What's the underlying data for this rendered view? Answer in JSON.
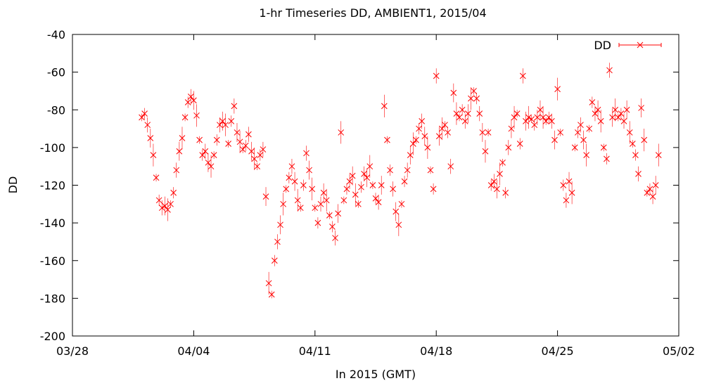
{
  "chart_data": {
    "type": "scatter",
    "title": "1-hr Timeseries DD, AMBIENT1, 2015/04",
    "xlabel": "In 2015 (GMT)",
    "ylabel": "DD",
    "x_ticks": [
      "03/28",
      "04/04",
      "04/11",
      "04/18",
      "04/25",
      "05/02"
    ],
    "xlim": [
      "03/28",
      "05/02"
    ],
    "ylim": [
      -200,
      -40
    ],
    "y_ticks": [
      -200,
      -180,
      -160,
      -140,
      -120,
      -100,
      -80,
      -60,
      -40
    ],
    "grid": false,
    "legend_position": "top-right",
    "marker": "x",
    "error_bars": true,
    "color": "#ff0000",
    "series": [
      {
        "name": "DD",
        "points": [
          {
            "x": "2015-04-01 00:00",
            "y": -84
          },
          {
            "x": "2015-04-01 04:00",
            "y": -82
          },
          {
            "x": "2015-04-01 08:00",
            "y": -88
          },
          {
            "x": "2015-04-01 12:00",
            "y": -95
          },
          {
            "x": "2015-04-01 16:00",
            "y": -104
          },
          {
            "x": "2015-04-01 20:00",
            "y": -116
          },
          {
            "x": "2015-04-02 00:00",
            "y": -128
          },
          {
            "x": "2015-04-02 04:00",
            "y": -132
          },
          {
            "x": "2015-04-02 08:00",
            "y": -131
          },
          {
            "x": "2015-04-02 12:00",
            "y": -133
          },
          {
            "x": "2015-04-02 16:00",
            "y": -130
          },
          {
            "x": "2015-04-02 20:00",
            "y": -124
          },
          {
            "x": "2015-04-03 00:00",
            "y": -112
          },
          {
            "x": "2015-04-03 04:00",
            "y": -102
          },
          {
            "x": "2015-04-03 08:00",
            "y": -95
          },
          {
            "x": "2015-04-03 12:00",
            "y": -84
          },
          {
            "x": "2015-04-03 16:00",
            "y": -76
          },
          {
            "x": "2015-04-03 20:00",
            "y": -73
          },
          {
            "x": "2015-04-04 00:00",
            "y": -75
          },
          {
            "x": "2015-04-04 04:00",
            "y": -83
          },
          {
            "x": "2015-04-04 08:00",
            "y": -96
          },
          {
            "x": "2015-04-04 12:00",
            "y": -104
          },
          {
            "x": "2015-04-04 16:00",
            "y": -102
          },
          {
            "x": "2015-04-04 20:00",
            "y": -108
          },
          {
            "x": "2015-04-05 00:00",
            "y": -110
          },
          {
            "x": "2015-04-05 04:00",
            "y": -104
          },
          {
            "x": "2015-04-05 08:00",
            "y": -96
          },
          {
            "x": "2015-04-05 12:00",
            "y": -88
          },
          {
            "x": "2015-04-05 16:00",
            "y": -86
          },
          {
            "x": "2015-04-05 20:00",
            "y": -88
          },
          {
            "x": "2015-04-06 00:00",
            "y": -98
          },
          {
            "x": "2015-04-06 04:00",
            "y": -86
          },
          {
            "x": "2015-04-06 08:00",
            "y": -78
          },
          {
            "x": "2015-04-06 12:00",
            "y": -92
          },
          {
            "x": "2015-04-06 16:00",
            "y": -97
          },
          {
            "x": "2015-04-06 20:00",
            "y": -101
          },
          {
            "x": "2015-04-07 00:00",
            "y": -99
          },
          {
            "x": "2015-04-07 04:00",
            "y": -93
          },
          {
            "x": "2015-04-07 08:00",
            "y": -102
          },
          {
            "x": "2015-04-07 12:00",
            "y": -106
          },
          {
            "x": "2015-04-07 16:00",
            "y": -110
          },
          {
            "x": "2015-04-07 20:00",
            "y": -104
          },
          {
            "x": "2015-04-08 00:00",
            "y": -101
          },
          {
            "x": "2015-04-08 04:00",
            "y": -126
          },
          {
            "x": "2015-04-08 08:00",
            "y": -172
          },
          {
            "x": "2015-04-08 12:00",
            "y": -178
          },
          {
            "x": "2015-04-08 16:00",
            "y": -160
          },
          {
            "x": "2015-04-08 20:00",
            "y": -150
          },
          {
            "x": "2015-04-09 00:00",
            "y": -141
          },
          {
            "x": "2015-04-09 04:00",
            "y": -130
          },
          {
            "x": "2015-04-09 08:00",
            "y": -122
          },
          {
            "x": "2015-04-09 12:00",
            "y": -116
          },
          {
            "x": "2015-04-09 16:00",
            "y": -110
          },
          {
            "x": "2015-04-09 20:00",
            "y": -118
          },
          {
            "x": "2015-04-10 00:00",
            "y": -128
          },
          {
            "x": "2015-04-10 04:00",
            "y": -132
          },
          {
            "x": "2015-04-10 08:00",
            "y": -120
          },
          {
            "x": "2015-04-10 12:00",
            "y": -103
          },
          {
            "x": "2015-04-10 16:00",
            "y": -112
          },
          {
            "x": "2015-04-10 20:00",
            "y": -122
          },
          {
            "x": "2015-04-11 00:00",
            "y": -132
          },
          {
            "x": "2015-04-11 04:00",
            "y": -140
          },
          {
            "x": "2015-04-11 08:00",
            "y": -130
          },
          {
            "x": "2015-04-11 12:00",
            "y": -124
          },
          {
            "x": "2015-04-11 16:00",
            "y": -128
          },
          {
            "x": "2015-04-11 20:00",
            "y": -136
          },
          {
            "x": "2015-04-12 00:00",
            "y": -142
          },
          {
            "x": "2015-04-12 04:00",
            "y": -148
          },
          {
            "x": "2015-04-12 08:00",
            "y": -135
          },
          {
            "x": "2015-04-12 12:00",
            "y": -92
          },
          {
            "x": "2015-04-12 16:00",
            "y": -128
          },
          {
            "x": "2015-04-12 20:00",
            "y": -122
          },
          {
            "x": "2015-04-13 00:00",
            "y": -118
          },
          {
            "x": "2015-04-13 04:00",
            "y": -115
          },
          {
            "x": "2015-04-13 08:00",
            "y": -125
          },
          {
            "x": "2015-04-13 12:00",
            "y": -130
          },
          {
            "x": "2015-04-13 16:00",
            "y": -121
          },
          {
            "x": "2015-04-13 20:00",
            "y": -114
          },
          {
            "x": "2015-04-14 00:00",
            "y": -116
          },
          {
            "x": "2015-04-14 04:00",
            "y": -110
          },
          {
            "x": "2015-04-14 08:00",
            "y": -120
          },
          {
            "x": "2015-04-14 12:00",
            "y": -127
          },
          {
            "x": "2015-04-14 16:00",
            "y": -129
          },
          {
            "x": "2015-04-14 20:00",
            "y": -120
          },
          {
            "x": "2015-04-15 00:00",
            "y": -78
          },
          {
            "x": "2015-04-15 04:00",
            "y": -96
          },
          {
            "x": "2015-04-15 08:00",
            "y": -112
          },
          {
            "x": "2015-04-15 12:00",
            "y": -122
          },
          {
            "x": "2015-04-15 16:00",
            "y": -134
          },
          {
            "x": "2015-04-15 20:00",
            "y": -141
          },
          {
            "x": "2015-04-16 00:00",
            "y": -130
          },
          {
            "x": "2015-04-16 04:00",
            "y": -118
          },
          {
            "x": "2015-04-16 08:00",
            "y": -112
          },
          {
            "x": "2015-04-16 12:00",
            "y": -104
          },
          {
            "x": "2015-04-16 16:00",
            "y": -98
          },
          {
            "x": "2015-04-16 20:00",
            "y": -96
          },
          {
            "x": "2015-04-17 00:00",
            "y": -90
          },
          {
            "x": "2015-04-17 04:00",
            "y": -86
          },
          {
            "x": "2015-04-17 08:00",
            "y": -94
          },
          {
            "x": "2015-04-17 12:00",
            "y": -100
          },
          {
            "x": "2015-04-17 16:00",
            "y": -112
          },
          {
            "x": "2015-04-17 20:00",
            "y": -122
          },
          {
            "x": "2015-04-18 00:00",
            "y": -62
          },
          {
            "x": "2015-04-18 04:00",
            "y": -94
          },
          {
            "x": "2015-04-18 08:00",
            "y": -90
          },
          {
            "x": "2015-04-18 12:00",
            "y": -88
          },
          {
            "x": "2015-04-18 16:00",
            "y": -92
          },
          {
            "x": "2015-04-18 20:00",
            "y": -110
          },
          {
            "x": "2015-04-19 00:00",
            "y": -71
          },
          {
            "x": "2015-04-19 04:00",
            "y": -82
          },
          {
            "x": "2015-04-19 08:00",
            "y": -84
          },
          {
            "x": "2015-04-19 12:00",
            "y": -80
          },
          {
            "x": "2015-04-19 16:00",
            "y": -86
          },
          {
            "x": "2015-04-19 20:00",
            "y": -82
          },
          {
            "x": "2015-04-20 00:00",
            "y": -74
          },
          {
            "x": "2015-04-20 04:00",
            "y": -70
          },
          {
            "x": "2015-04-20 08:00",
            "y": -74
          },
          {
            "x": "2015-04-20 12:00",
            "y": -82
          },
          {
            "x": "2015-04-20 16:00",
            "y": -92
          },
          {
            "x": "2015-04-20 20:00",
            "y": -102
          },
          {
            "x": "2015-04-21 00:00",
            "y": -92
          },
          {
            "x": "2015-04-21 04:00",
            "y": -120
          },
          {
            "x": "2015-04-21 08:00",
            "y": -118
          },
          {
            "x": "2015-04-21 12:00",
            "y": -122
          },
          {
            "x": "2015-04-21 16:00",
            "y": -114
          },
          {
            "x": "2015-04-21 20:00",
            "y": -108
          },
          {
            "x": "2015-04-22 00:00",
            "y": -124
          },
          {
            "x": "2015-04-22 04:00",
            "y": -100
          },
          {
            "x": "2015-04-22 08:00",
            "y": -90
          },
          {
            "x": "2015-04-22 12:00",
            "y": -84
          },
          {
            "x": "2015-04-22 16:00",
            "y": -82
          },
          {
            "x": "2015-04-22 20:00",
            "y": -98
          },
          {
            "x": "2015-04-23 00:00",
            "y": -62
          },
          {
            "x": "2015-04-23 04:00",
            "y": -86
          },
          {
            "x": "2015-04-23 08:00",
            "y": -84
          },
          {
            "x": "2015-04-23 12:00",
            "y": -85
          },
          {
            "x": "2015-04-23 16:00",
            "y": -88
          },
          {
            "x": "2015-04-23 20:00",
            "y": -84
          },
          {
            "x": "2015-04-24 00:00",
            "y": -80
          },
          {
            "x": "2015-04-24 04:00",
            "y": -84
          },
          {
            "x": "2015-04-24 08:00",
            "y": -86
          },
          {
            "x": "2015-04-24 12:00",
            "y": -84
          },
          {
            "x": "2015-04-24 16:00",
            "y": -86
          },
          {
            "x": "2015-04-24 20:00",
            "y": -96
          },
          {
            "x": "2015-04-25 00:00",
            "y": -69
          },
          {
            "x": "2015-04-25 04:00",
            "y": -92
          },
          {
            "x": "2015-04-25 08:00",
            "y": -120
          },
          {
            "x": "2015-04-25 12:00",
            "y": -128
          },
          {
            "x": "2015-04-25 16:00",
            "y": -118
          },
          {
            "x": "2015-04-25 20:00",
            "y": -124
          },
          {
            "x": "2015-04-26 00:00",
            "y": -100
          },
          {
            "x": "2015-04-26 04:00",
            "y": -92
          },
          {
            "x": "2015-04-26 08:00",
            "y": -88
          },
          {
            "x": "2015-04-26 12:00",
            "y": -96
          },
          {
            "x": "2015-04-26 16:00",
            "y": -104
          },
          {
            "x": "2015-04-26 20:00",
            "y": -90
          },
          {
            "x": "2015-04-27 00:00",
            "y": -76
          },
          {
            "x": "2015-04-27 04:00",
            "y": -82
          },
          {
            "x": "2015-04-27 08:00",
            "y": -80
          },
          {
            "x": "2015-04-27 12:00",
            "y": -86
          },
          {
            "x": "2015-04-27 16:00",
            "y": -100
          },
          {
            "x": "2015-04-27 20:00",
            "y": -106
          },
          {
            "x": "2015-04-28 00:00",
            "y": -59
          },
          {
            "x": "2015-04-28 04:00",
            "y": -84
          },
          {
            "x": "2015-04-28 08:00",
            "y": -80
          },
          {
            "x": "2015-04-28 12:00",
            "y": -84
          },
          {
            "x": "2015-04-28 16:00",
            "y": -82
          },
          {
            "x": "2015-04-28 20:00",
            "y": -86
          },
          {
            "x": "2015-04-29 00:00",
            "y": -80
          },
          {
            "x": "2015-04-29 04:00",
            "y": -92
          },
          {
            "x": "2015-04-29 08:00",
            "y": -98
          },
          {
            "x": "2015-04-29 12:00",
            "y": -104
          },
          {
            "x": "2015-04-29 16:00",
            "y": -114
          },
          {
            "x": "2015-04-29 20:00",
            "y": -79
          },
          {
            "x": "2015-04-30 00:00",
            "y": -96
          },
          {
            "x": "2015-04-30 04:00",
            "y": -124
          },
          {
            "x": "2015-04-30 08:00",
            "y": -122
          },
          {
            "x": "2015-04-30 12:00",
            "y": -126
          },
          {
            "x": "2015-04-30 16:00",
            "y": -120
          },
          {
            "x": "2015-04-30 20:00",
            "y": -104
          }
        ]
      }
    ]
  }
}
